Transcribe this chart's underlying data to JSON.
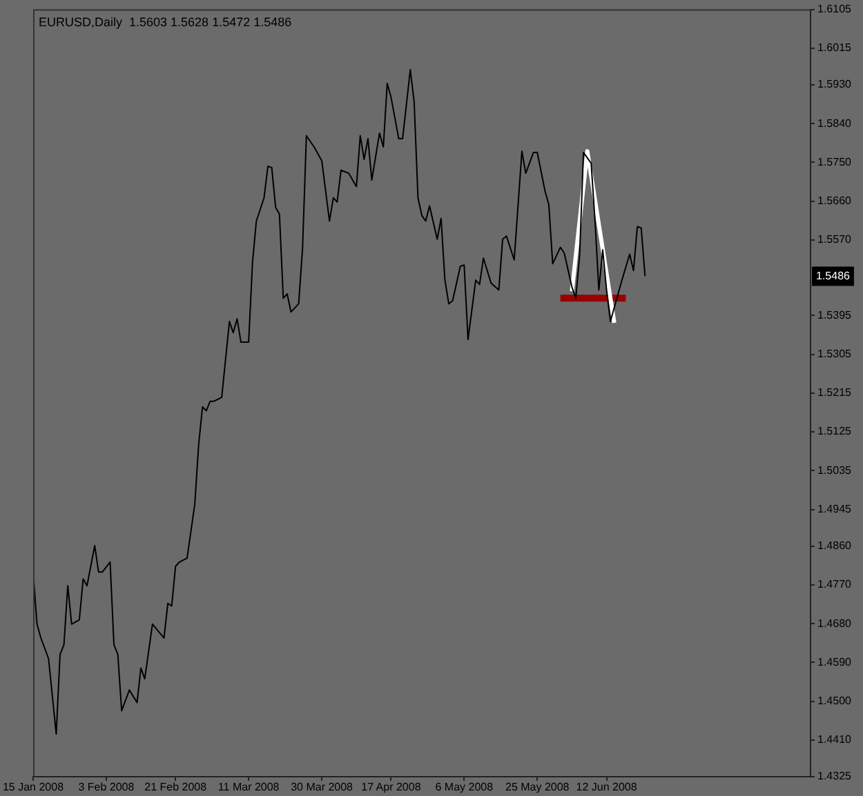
{
  "chart_data": {
    "type": "line",
    "title": "EURUSD,Daily  1.5603 1.5628 1.5472 1.5486",
    "legend": false,
    "marker": "none",
    "grid": false,
    "xlim": [
      "2008-01-15",
      "2008-08-04"
    ],
    "xticks": [
      {
        "value": "2008-01-15",
        "label": "15 Jan 2008"
      },
      {
        "value": "2008-02-03",
        "label": "3 Feb 2008"
      },
      {
        "value": "2008-02-21",
        "label": "21 Feb 2008"
      },
      {
        "value": "2008-03-11",
        "label": "11 Mar 2008"
      },
      {
        "value": "2008-03-30",
        "label": "30 Mar 2008"
      },
      {
        "value": "2008-04-17",
        "label": "17 Apr 2008"
      },
      {
        "value": "2008-05-06",
        "label": "6 May 2008"
      },
      {
        "value": "2008-05-25",
        "label": "25 May 2008"
      },
      {
        "value": "2008-06-12",
        "label": "12 Jun 2008"
      }
    ],
    "ylim": [
      1.4325,
      1.6105
    ],
    "yticks": [
      1.6105,
      1.6015,
      {
        "value": 1.593,
        "label": "1.5930"
      },
      {
        "value": 1.584,
        "label": "1.5840"
      },
      {
        "value": 1.575,
        "label": "1.5750"
      },
      {
        "value": 1.566,
        "label": "1.5660"
      },
      {
        "value": 1.557,
        "label": "1.5570"
      },
      1.5395,
      1.5305,
      1.5215,
      1.5125,
      1.5035,
      1.4945,
      {
        "value": 1.486,
        "label": "1.4860"
      },
      {
        "value": 1.477,
        "label": "1.4770"
      },
      {
        "value": 1.468,
        "label": "1.4680"
      },
      {
        "value": 1.459,
        "label": "1.4590"
      },
      {
        "value": 1.45,
        "label": "1.4500"
      },
      {
        "value": 1.441,
        "label": "1.4410"
      },
      1.4325
    ],
    "annotations": [
      {
        "text": "1.5486",
        "y": 1.5486
      }
    ],
    "series": [
      {
        "type": "line",
        "color": "#000000",
        "x": [
          "2008-01-15",
          "2008-01-16",
          "2008-01-17",
          "2008-01-19",
          "2008-01-21",
          "2008-01-22",
          "2008-01-23",
          "2008-01-24",
          "2008-01-25",
          "2008-01-27",
          "2008-01-28",
          "2008-01-29",
          "2008-01-31",
          "2008-02-01",
          "2008-02-02",
          "2008-02-04",
          "2008-02-05",
          "2008-02-06",
          "2008-02-07",
          "2008-02-09",
          "2008-02-11",
          "2008-02-12",
          "2008-02-13",
          "2008-02-15",
          "2008-02-18",
          "2008-02-19",
          "2008-02-20",
          "2008-02-21",
          "2008-02-22",
          "2008-02-24",
          "2008-02-26",
          "2008-02-27",
          "2008-02-28",
          "2008-02-29",
          "2008-03-01",
          "2008-03-02",
          "2008-03-04",
          "2008-03-06",
          "2008-03-07",
          "2008-03-08",
          "2008-03-09",
          "2008-03-11",
          "2008-03-12",
          "2008-03-13",
          "2008-03-15",
          "2008-03-16",
          "2008-03-17",
          "2008-03-18",
          "2008-03-19",
          "2008-03-20",
          "2008-03-21",
          "2008-03-22",
          "2008-03-24",
          "2008-03-25",
          "2008-03-26",
          "2008-03-28",
          "2008-03-30",
          "2008-04-01",
          "2008-04-02",
          "2008-04-03",
          "2008-04-04",
          "2008-04-06",
          "2008-04-08",
          "2008-04-09",
          "2008-04-10",
          "2008-04-11",
          "2008-04-12",
          "2008-04-14",
          "2008-04-15",
          "2008-04-16",
          "2008-04-17",
          "2008-04-19",
          "2008-04-20",
          "2008-04-22",
          "2008-04-23",
          "2008-04-24",
          "2008-04-25",
          "2008-04-26",
          "2008-04-27",
          "2008-04-29",
          "2008-04-30",
          "2008-05-01",
          "2008-05-02",
          "2008-05-03",
          "2008-05-05",
          "2008-05-06",
          "2008-05-07",
          "2008-05-09",
          "2008-05-10",
          "2008-05-11",
          "2008-05-13",
          "2008-05-15",
          "2008-05-16",
          "2008-05-17",
          "2008-05-19",
          "2008-05-21",
          "2008-05-22",
          "2008-05-24",
          "2008-05-25",
          "2008-05-27",
          "2008-05-28",
          "2008-05-29",
          "2008-05-31",
          "2008-06-01",
          "2008-06-03",
          "2008-06-04",
          "2008-06-05",
          "2008-06-06",
          "2008-06-08",
          "2008-06-09",
          "2008-06-10",
          "2008-06-11",
          "2008-06-12",
          "2008-06-13",
          "2008-06-14",
          "2008-06-16",
          "2008-06-18",
          "2008-06-19",
          "2008-06-20",
          "2008-06-21",
          "2008-06-22"
        ],
        "values": [
          1.48,
          1.4679,
          1.4647,
          1.4599,
          1.4424,
          1.4609,
          1.4631,
          1.4768,
          1.4679,
          1.4689,
          1.4784,
          1.4768,
          1.4861,
          1.48,
          1.48,
          1.4823,
          1.4631,
          1.4609,
          1.4478,
          1.4526,
          1.4497,
          1.4577,
          1.4552,
          1.4679,
          1.4647,
          1.4727,
          1.4721,
          1.4813,
          1.4823,
          1.4832,
          1.4957,
          1.5094,
          1.5183,
          1.5174,
          1.5196,
          1.5196,
          1.5205,
          1.5381,
          1.5355,
          1.5387,
          1.5333,
          1.5333,
          1.5518,
          1.5614,
          1.5668,
          1.5741,
          1.5738,
          1.5646,
          1.563,
          1.5435,
          1.5445,
          1.5403,
          1.5422,
          1.555,
          1.5812,
          1.5786,
          1.5754,
          1.5614,
          1.5668,
          1.5658,
          1.5732,
          1.5725,
          1.5694,
          1.5812,
          1.5757,
          1.5805,
          1.5709,
          1.5818,
          1.5786,
          1.5933,
          1.5901,
          1.5805,
          1.5805,
          1.5965,
          1.5891,
          1.5668,
          1.5627,
          1.5614,
          1.5649,
          1.5572,
          1.562,
          1.5477,
          1.5422,
          1.5429,
          1.5509,
          1.5512,
          1.5339,
          1.5477,
          1.5467,
          1.5528,
          1.547,
          1.5454,
          1.5572,
          1.5579,
          1.5524,
          1.5776,
          1.5725,
          1.5773,
          1.5773,
          1.5684,
          1.5652,
          1.5515,
          1.5553,
          1.554,
          1.5461,
          1.5435,
          1.5534,
          1.5773,
          1.5748,
          1.5614,
          1.5454,
          1.5547,
          1.5454,
          1.5381,
          1.5413,
          1.5477,
          1.5537,
          1.5499,
          1.5601,
          1.5598,
          1.5486
        ]
      },
      {
        "type": "line",
        "color": "#ffffff",
        "x": [
          "2008-06-03",
          "2008-06-07",
          "2008-06-14"
        ],
        "values": [
          1.5451,
          1.5776,
          1.5378
        ]
      },
      {
        "type": "line",
        "color": "#990000",
        "x": [
          "2008-05-31",
          "2008-06-17"
        ],
        "values": [
          1.5435,
          1.5435
        ]
      }
    ]
  }
}
